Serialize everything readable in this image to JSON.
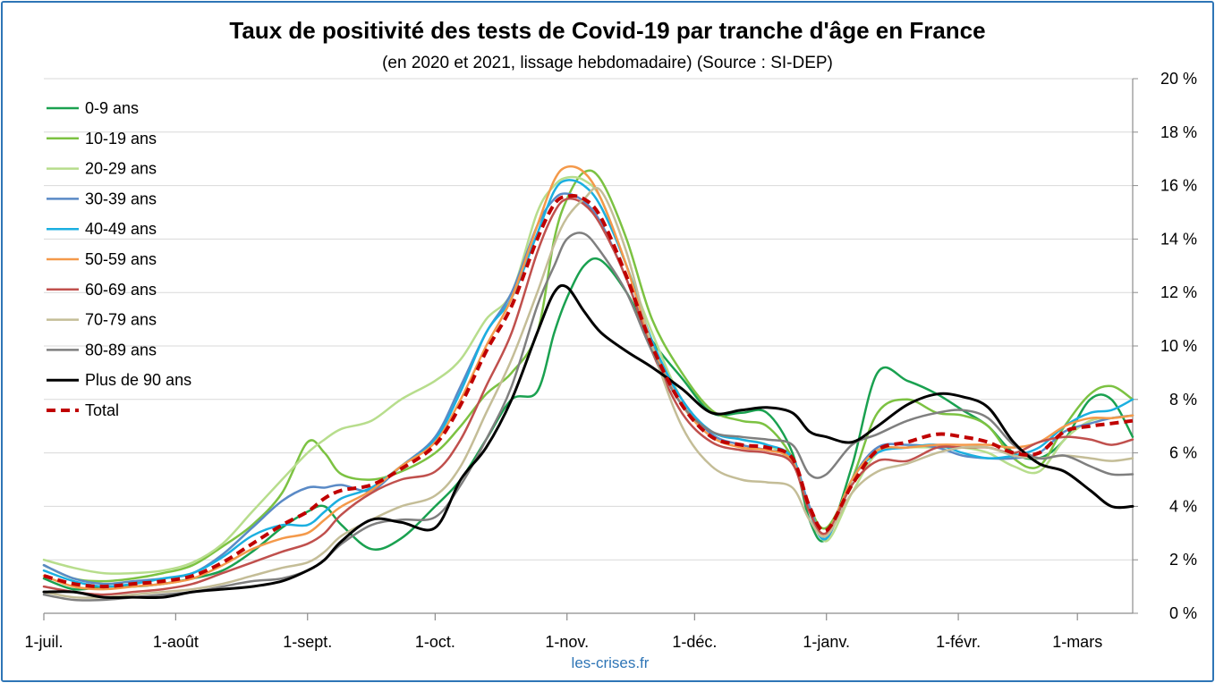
{
  "chart_data": {
    "type": "line",
    "title": "Taux de positivité des tests de Covid-19 par tranche d'âge en France",
    "subtitle": "(en 2020 et 2021, lissage hebdomadaire) (Source : SI-DEP)",
    "source_label": "les-crises.fr",
    "x_tick_labels": [
      "1-juil.",
      "1-août",
      "1-sept.",
      "1-oct.",
      "1-nov.",
      "1-déc.",
      "1-janv.",
      "1-févr.",
      "1-mars"
    ],
    "x_tick_days": [
      0,
      31,
      62,
      92,
      123,
      153,
      184,
      215,
      243
    ],
    "x_range_days": [
      0,
      256
    ],
    "y_tick_labels": [
      "0 %",
      "2 %",
      "4 %",
      "6 %",
      "8 %",
      "10 %",
      "12 %",
      "14 %",
      "16 %",
      "18 %",
      "20 %"
    ],
    "ylim": [
      0,
      20
    ],
    "y_axis_side": "right",
    "grid": "horizontal",
    "legend_position": "top-left",
    "x": [
      0,
      7,
      14,
      21,
      28,
      35,
      42,
      49,
      56,
      62,
      66,
      70,
      77,
      84,
      92,
      98,
      104,
      110,
      116,
      120,
      123,
      127,
      131,
      137,
      143,
      150,
      157,
      164,
      170,
      176,
      180,
      184,
      190,
      196,
      203,
      210,
      216,
      222,
      228,
      234,
      240,
      246,
      251,
      256
    ],
    "series": [
      {
        "name": "0-9 ans",
        "color": "#1aa150",
        "width": 2.5,
        "dash": "",
        "values": [
          1.3,
          0.9,
          1.0,
          1.0,
          1.1,
          1.3,
          1.6,
          2.3,
          3.2,
          3.8,
          4.0,
          3.3,
          2.4,
          2.8,
          4.0,
          5.0,
          6.5,
          8.0,
          8.3,
          10.5,
          11.8,
          13.0,
          13.2,
          12.0,
          10.2,
          8.8,
          7.5,
          7.5,
          7.5,
          6.0,
          3.5,
          2.8,
          5.5,
          9.0,
          8.7,
          8.2,
          7.6,
          7.0,
          6.0,
          5.8,
          6.5,
          8.0,
          8.0,
          6.6
        ]
      },
      {
        "name": "10-19 ans",
        "color": "#7cc242",
        "width": 2.5,
        "dash": "",
        "values": [
          1.8,
          1.3,
          1.2,
          1.3,
          1.5,
          1.8,
          2.5,
          3.3,
          4.5,
          6.4,
          6.0,
          5.2,
          5.0,
          5.3,
          6.0,
          7.0,
          8.2,
          9.0,
          10.5,
          14.0,
          15.5,
          16.5,
          16.2,
          14.0,
          11.0,
          9.0,
          7.6,
          7.2,
          7.0,
          5.8,
          4.0,
          3.2,
          5.0,
          7.5,
          8.0,
          7.5,
          7.4,
          7.0,
          5.8,
          5.5,
          7.0,
          8.2,
          8.5,
          8.0
        ]
      },
      {
        "name": "20-29 ans",
        "color": "#b7dd8c",
        "width": 2.5,
        "dash": "",
        "values": [
          2.0,
          1.7,
          1.5,
          1.5,
          1.6,
          1.9,
          2.6,
          3.8,
          5.0,
          6.0,
          6.5,
          6.9,
          7.2,
          8.0,
          8.7,
          9.5,
          11.0,
          12.0,
          15.0,
          16.0,
          16.3,
          16.2,
          15.5,
          13.0,
          10.5,
          8.0,
          6.8,
          6.5,
          6.3,
          5.6,
          4.0,
          2.7,
          4.5,
          6.0,
          6.2,
          6.2,
          6.2,
          6.0,
          5.5,
          5.3,
          6.5,
          7.2,
          7.3,
          7.4
        ]
      },
      {
        "name": "30-39 ans",
        "color": "#5a8ac6",
        "width": 2.5,
        "dash": "",
        "values": [
          1.8,
          1.3,
          1.1,
          1.2,
          1.3,
          1.5,
          2.2,
          3.2,
          4.2,
          4.7,
          4.7,
          4.8,
          4.6,
          5.5,
          6.6,
          8.5,
          10.5,
          12.0,
          14.5,
          15.5,
          15.7,
          15.4,
          14.6,
          12.5,
          10.0,
          8.0,
          6.7,
          6.3,
          6.1,
          5.8,
          4.0,
          2.8,
          5.0,
          6.2,
          6.3,
          6.2,
          5.9,
          5.8,
          5.8,
          6.0,
          6.8,
          7.1,
          7.3,
          7.4
        ]
      },
      {
        "name": "40-49 ans",
        "color": "#1bafe0",
        "width": 2.5,
        "dash": "",
        "values": [
          1.6,
          1.2,
          1.0,
          1.1,
          1.3,
          1.5,
          2.1,
          2.9,
          3.3,
          3.3,
          3.8,
          4.3,
          4.7,
          5.5,
          6.5,
          8.3,
          10.5,
          11.8,
          14.2,
          15.8,
          16.2,
          16.0,
          15.2,
          13.0,
          10.2,
          8.0,
          6.8,
          6.5,
          6.3,
          5.8,
          3.8,
          2.8,
          5.0,
          6.0,
          6.2,
          6.3,
          6.0,
          5.8,
          5.9,
          6.2,
          7.0,
          7.5,
          7.6,
          8.0
        ]
      },
      {
        "name": "50-59 ans",
        "color": "#f4994a",
        "width": 2.5,
        "dash": "",
        "values": [
          1.4,
          1.0,
          0.9,
          1.0,
          1.1,
          1.3,
          1.8,
          2.4,
          2.8,
          3.0,
          3.5,
          4.0,
          4.6,
          5.5,
          6.4,
          8.0,
          10.0,
          11.8,
          14.5,
          16.2,
          16.7,
          16.5,
          15.5,
          13.0,
          10.0,
          7.8,
          6.6,
          6.2,
          6.1,
          5.7,
          3.8,
          3.0,
          5.0,
          6.1,
          6.2,
          6.3,
          6.3,
          6.3,
          6.2,
          6.4,
          7.0,
          7.3,
          7.3,
          7.4
        ]
      },
      {
        "name": "60-69 ans",
        "color": "#c0504d",
        "width": 2.5,
        "dash": "",
        "values": [
          1.0,
          0.8,
          0.7,
          0.8,
          0.9,
          1.1,
          1.5,
          1.9,
          2.3,
          2.6,
          3.0,
          3.7,
          4.5,
          5.0,
          5.3,
          6.5,
          8.5,
          10.5,
          13.5,
          15.0,
          15.5,
          15.3,
          14.5,
          12.5,
          9.8,
          7.5,
          6.4,
          6.1,
          6.0,
          5.6,
          3.8,
          3.0,
          4.8,
          5.7,
          5.7,
          6.2,
          6.2,
          6.2,
          6.0,
          6.4,
          6.6,
          6.5,
          6.3,
          6.5
        ]
      },
      {
        "name": "70-79 ans",
        "color": "#c4bd97",
        "width": 2.5,
        "dash": "",
        "values": [
          0.8,
          0.6,
          0.6,
          0.7,
          0.8,
          0.9,
          1.1,
          1.4,
          1.7,
          1.9,
          2.3,
          2.9,
          3.5,
          4.0,
          4.4,
          5.5,
          7.5,
          9.5,
          12.0,
          13.8,
          14.8,
          15.5,
          15.8,
          13.5,
          10.0,
          7.0,
          5.5,
          5.0,
          4.9,
          4.7,
          3.5,
          2.9,
          4.5,
          5.3,
          5.6,
          6.0,
          6.2,
          6.2,
          5.9,
          5.8,
          5.9,
          5.8,
          5.7,
          5.8
        ]
      },
      {
        "name": "80-89 ans",
        "color": "#7f7f7f",
        "width": 2.5,
        "dash": "",
        "values": [
          0.7,
          0.5,
          0.5,
          0.6,
          0.7,
          0.8,
          1.0,
          1.2,
          1.3,
          1.6,
          2.0,
          2.6,
          3.3,
          3.5,
          3.6,
          4.8,
          6.5,
          8.5,
          11.5,
          13.0,
          14.0,
          14.2,
          13.5,
          12.0,
          9.8,
          7.8,
          6.8,
          6.6,
          6.5,
          6.3,
          5.2,
          5.2,
          6.3,
          6.7,
          7.2,
          7.5,
          7.6,
          7.3,
          6.3,
          5.8,
          5.9,
          5.5,
          5.2,
          5.2
        ]
      },
      {
        "name": "Plus de 90 ans",
        "color": "#000000",
        "width": 3,
        "dash": "",
        "values": [
          0.8,
          0.8,
          0.6,
          0.6,
          0.6,
          0.8,
          0.9,
          1.0,
          1.2,
          1.6,
          2.0,
          2.7,
          3.5,
          3.4,
          3.2,
          5.0,
          6.2,
          8.0,
          10.5,
          12.0,
          12.2,
          11.3,
          10.5,
          9.8,
          9.2,
          8.4,
          7.5,
          7.6,
          7.7,
          7.5,
          6.8,
          6.6,
          6.4,
          7.0,
          7.8,
          8.2,
          8.1,
          7.7,
          6.4,
          5.6,
          5.3,
          4.6,
          4.0,
          4.0
        ]
      },
      {
        "name": "Total",
        "color": "#c00000",
        "width": 4,
        "dash": "10,6",
        "values": [
          1.4,
          1.1,
          1.0,
          1.1,
          1.2,
          1.4,
          1.9,
          2.6,
          3.3,
          3.8,
          4.3,
          4.6,
          4.8,
          5.4,
          6.3,
          7.8,
          9.8,
          11.5,
          14.0,
          15.3,
          15.6,
          15.5,
          14.8,
          12.6,
          10.0,
          7.8,
          6.6,
          6.3,
          6.2,
          5.8,
          4.0,
          3.1,
          4.8,
          6.1,
          6.4,
          6.7,
          6.6,
          6.4,
          6.0,
          6.0,
          6.8,
          7.0,
          7.1,
          7.2
        ]
      }
    ]
  }
}
